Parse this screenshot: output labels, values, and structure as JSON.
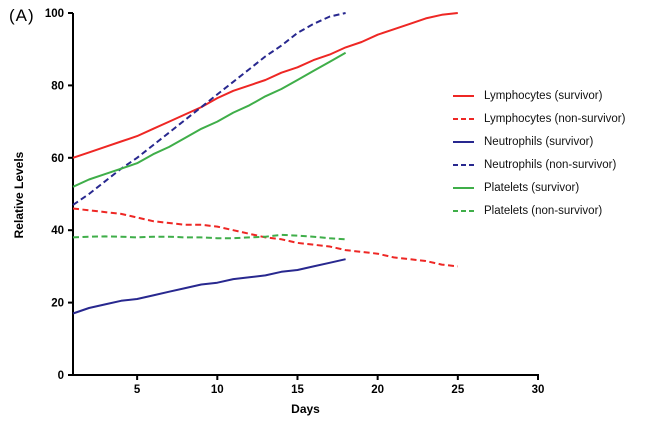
{
  "panel_label": "(A)",
  "chart_data": {
    "type": "line",
    "title": "",
    "xlabel": "Days",
    "ylabel": "Relative Levels",
    "xlim": [
      1,
      30
    ],
    "ylim": [
      0,
      100
    ],
    "x_ticks": [
      5,
      10,
      15,
      20,
      25,
      30
    ],
    "y_ticks": [
      0,
      20,
      40,
      60,
      80,
      100
    ],
    "grid": false,
    "legend_position": "right",
    "axis_color": "#000000",
    "series": [
      {
        "name": "Lymphocytes (survivor)",
        "color": "#ee2724",
        "style": "solid",
        "points": [
          [
            1,
            60
          ],
          [
            2,
            61.5
          ],
          [
            3,
            63
          ],
          [
            4,
            64.5
          ],
          [
            5,
            66
          ],
          [
            6,
            68
          ],
          [
            7,
            70
          ],
          [
            8,
            72
          ],
          [
            9,
            74
          ],
          [
            10,
            76.5
          ],
          [
            11,
            78.5
          ],
          [
            12,
            80
          ],
          [
            13,
            81.5
          ],
          [
            14,
            83.5
          ],
          [
            15,
            85
          ],
          [
            16,
            87
          ],
          [
            17,
            88.5
          ],
          [
            18,
            90.5
          ],
          [
            19,
            92
          ],
          [
            20,
            94
          ],
          [
            21,
            95.5
          ],
          [
            22,
            97
          ],
          [
            23,
            98.5
          ],
          [
            24,
            99.5
          ],
          [
            25,
            100
          ]
        ]
      },
      {
        "name": "Lymphocytes (non-survivor)",
        "color": "#ee2724",
        "style": "dashed",
        "points": [
          [
            1,
            46
          ],
          [
            2,
            45.5
          ],
          [
            3,
            45
          ],
          [
            4,
            44.5
          ],
          [
            5,
            43.5
          ],
          [
            6,
            42.5
          ],
          [
            7,
            42
          ],
          [
            8,
            41.5
          ],
          [
            9,
            41.5
          ],
          [
            10,
            41
          ],
          [
            11,
            40
          ],
          [
            12,
            39
          ],
          [
            13,
            38
          ],
          [
            14,
            37.5
          ],
          [
            15,
            36.5
          ],
          [
            16,
            36
          ],
          [
            17,
            35.5
          ],
          [
            18,
            34.5
          ],
          [
            19,
            34
          ],
          [
            20,
            33.5
          ],
          [
            21,
            32.5
          ],
          [
            22,
            32
          ],
          [
            23,
            31.5
          ],
          [
            24,
            30.5
          ],
          [
            25,
            30
          ]
        ]
      },
      {
        "name": "Neutrophils (survivor)",
        "color": "#28288f",
        "style": "solid",
        "points": [
          [
            1,
            17
          ],
          [
            2,
            18.5
          ],
          [
            3,
            19.5
          ],
          [
            4,
            20.5
          ],
          [
            5,
            21
          ],
          [
            6,
            22
          ],
          [
            7,
            23
          ],
          [
            8,
            24
          ],
          [
            9,
            25
          ],
          [
            10,
            25.5
          ],
          [
            11,
            26.5
          ],
          [
            12,
            27
          ],
          [
            13,
            27.5
          ],
          [
            14,
            28.5
          ],
          [
            15,
            29
          ],
          [
            16,
            30
          ],
          [
            17,
            31
          ],
          [
            18,
            32
          ]
        ]
      },
      {
        "name": "Neutrophils (non-survivor)",
        "color": "#28288f",
        "style": "dashed",
        "points": [
          [
            1,
            47
          ],
          [
            2,
            50
          ],
          [
            3,
            53.5
          ],
          [
            4,
            57
          ],
          [
            5,
            60
          ],
          [
            6,
            63.5
          ],
          [
            7,
            67
          ],
          [
            8,
            70.5
          ],
          [
            9,
            74
          ],
          [
            10,
            77.5
          ],
          [
            11,
            81
          ],
          [
            12,
            84.5
          ],
          [
            13,
            88
          ],
          [
            14,
            91
          ],
          [
            15,
            94.5
          ],
          [
            16,
            97
          ],
          [
            17,
            99
          ],
          [
            18,
            100
          ]
        ]
      },
      {
        "name": "Platelets (survivor)",
        "color": "#3fae49",
        "style": "solid",
        "points": [
          [
            1,
            52
          ],
          [
            2,
            54
          ],
          [
            3,
            55.5
          ],
          [
            4,
            57
          ],
          [
            5,
            58.5
          ],
          [
            6,
            61
          ],
          [
            7,
            63
          ],
          [
            8,
            65.5
          ],
          [
            9,
            68
          ],
          [
            10,
            70
          ],
          [
            11,
            72.5
          ],
          [
            12,
            74.5
          ],
          [
            13,
            77
          ],
          [
            14,
            79
          ],
          [
            15,
            81.5
          ],
          [
            16,
            84
          ],
          [
            17,
            86.5
          ],
          [
            18,
            89
          ]
        ]
      },
      {
        "name": "Platelets (non-survivor)",
        "color": "#3fae49",
        "style": "dashed",
        "points": [
          [
            1,
            38
          ],
          [
            2,
            38.2
          ],
          [
            3,
            38.3
          ],
          [
            4,
            38.2
          ],
          [
            5,
            38
          ],
          [
            6,
            38.2
          ],
          [
            7,
            38.2
          ],
          [
            8,
            38
          ],
          [
            9,
            38
          ],
          [
            10,
            37.8
          ],
          [
            11,
            37.8
          ],
          [
            12,
            38
          ],
          [
            13,
            38.2
          ],
          [
            14,
            38.7
          ],
          [
            15,
            38.5
          ],
          [
            16,
            38.2
          ],
          [
            17,
            37.8
          ],
          [
            18,
            37.5
          ]
        ]
      }
    ]
  }
}
